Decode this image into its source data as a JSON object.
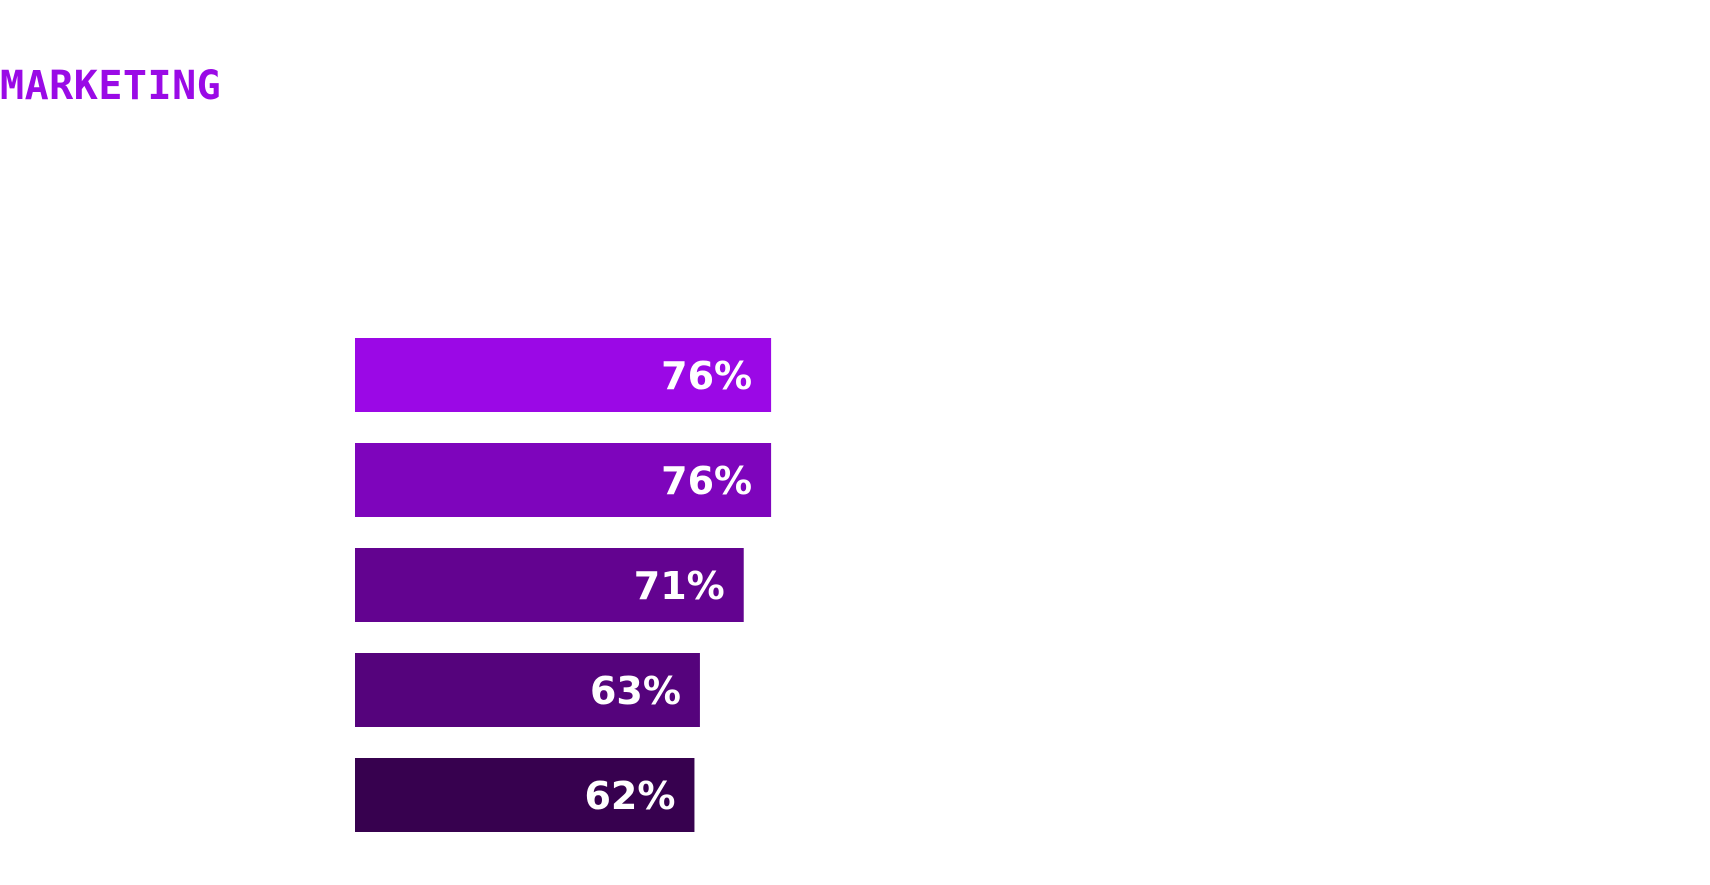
{
  "heading": {
    "text": "MARKETING",
    "color": "#9a0ae6"
  },
  "chart_data": {
    "type": "bar",
    "orientation": "horizontal",
    "title": "MARKETING",
    "categories": [
      "",
      "",
      "",
      "",
      ""
    ],
    "values": [
      76,
      76,
      71,
      63,
      62
    ],
    "value_labels": [
      "76%",
      "76%",
      "71%",
      "63%",
      "62%"
    ],
    "colors": [
      "#9b08e6",
      "#7e05bc",
      "#630390",
      "#55037c",
      "#37014f"
    ],
    "label_color": "#ffffff",
    "xlim": [
      0,
      100
    ],
    "grid": false,
    "axes_visible": false,
    "legend": "none"
  }
}
